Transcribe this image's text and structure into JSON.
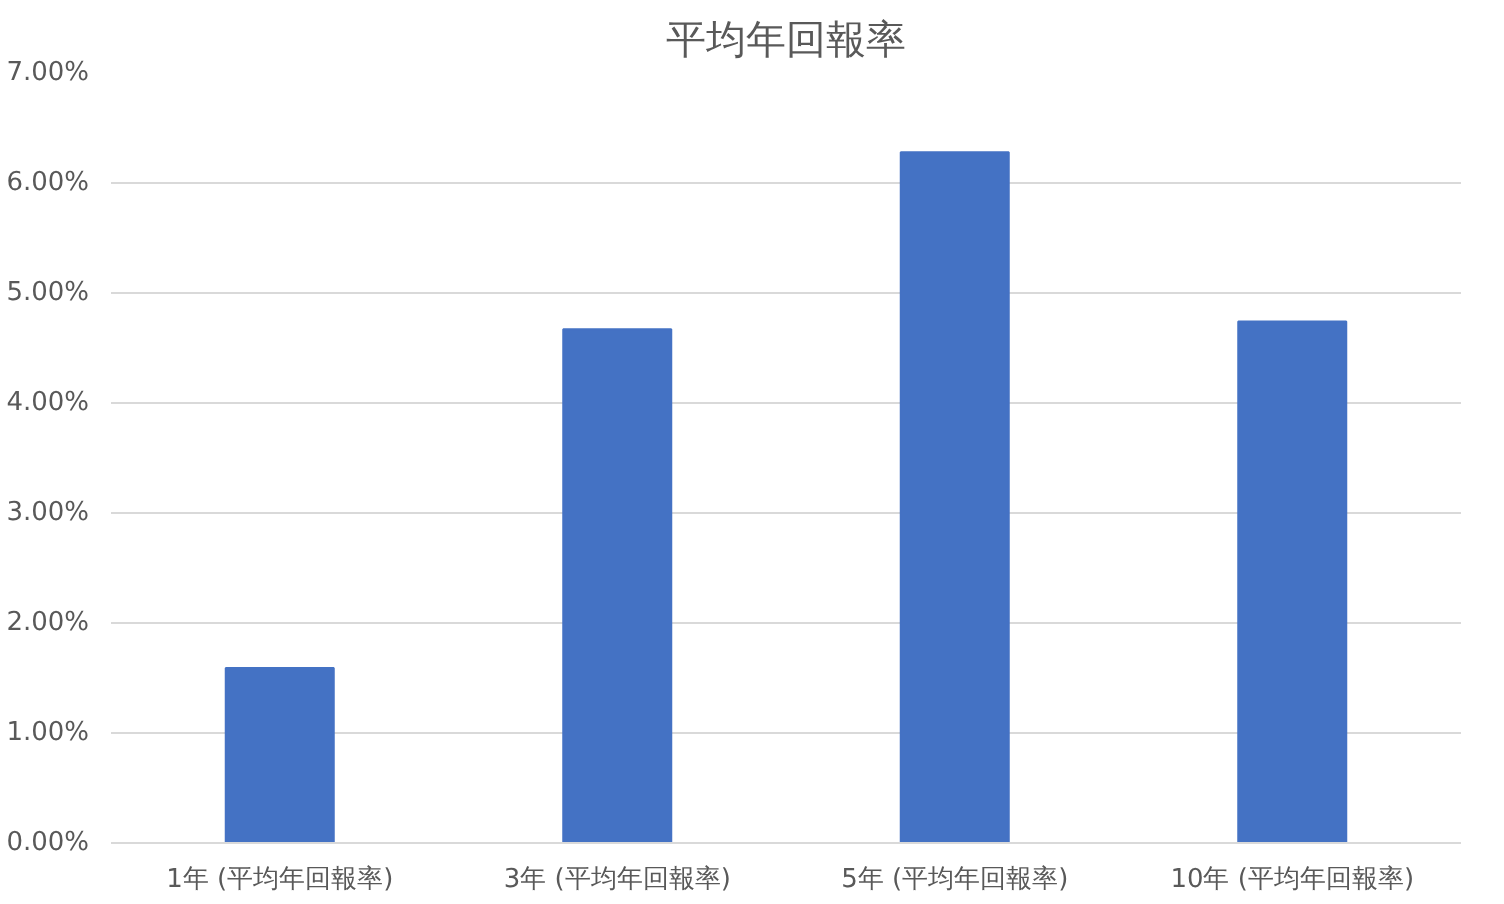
{
  "chart_data": {
    "type": "bar",
    "title": "平均年回報率",
    "categories": [
      "1年 (平均年回報率)",
      "3年 (平均年回報率)",
      "5年 (平均年回報率)",
      "10年 (平均年回報率)"
    ],
    "values": [
      1.59,
      4.67,
      6.28,
      4.74
    ],
    "color": "#4472c4",
    "ylim": [
      0,
      7
    ],
    "yticks": [
      {
        "value": 0,
        "label": "0.00%"
      },
      {
        "value": 1,
        "label": "1.00%"
      },
      {
        "value": 2,
        "label": "2.00%"
      },
      {
        "value": 3,
        "label": "3.00%"
      },
      {
        "value": 4,
        "label": "4.00%"
      },
      {
        "value": 5,
        "label": "5.00%"
      },
      {
        "value": 6,
        "label": "6.00%"
      },
      {
        "value": 7,
        "label": "7.00%"
      }
    ],
    "grid": "y"
  }
}
